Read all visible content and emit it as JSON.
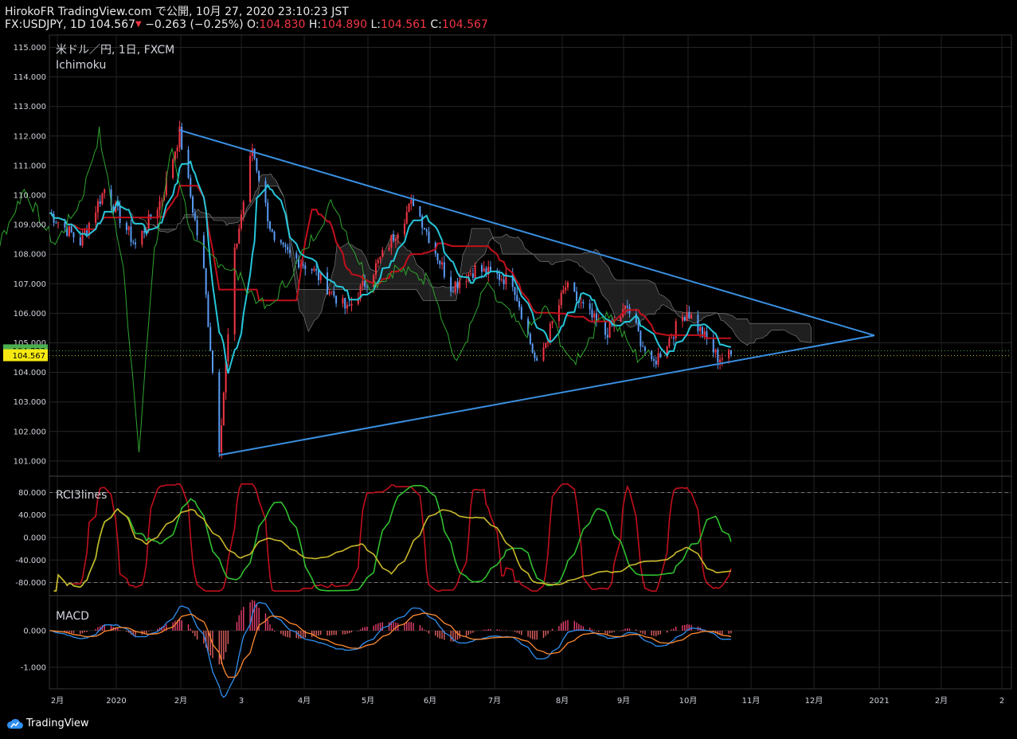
{
  "header": {
    "line1": "HirokoFR TradingView.com で公開, 10月 27, 2020 23:10:23 JST",
    "symbol": "FX:USDJPY, 1D 104.567",
    "change": "−0.263 (−0.25%)",
    "o_label": "O:",
    "o_value": "104.830",
    "h_label": "H:",
    "h_value": "104.890",
    "l_label": "L:",
    "l_value": "104.561",
    "c_label": "C:",
    "c_value": "104.567"
  },
  "main_pane": {
    "title": "米ドル／円, 1日, FXCM",
    "indicator": "Ichimoku"
  },
  "rci_pane": {
    "title": "RCI3lines"
  },
  "macd_pane": {
    "title": "MACD"
  },
  "footer": {
    "brand": "TradingView"
  },
  "colors": {
    "up": "#f23645",
    "down": "#5b9cf6",
    "tenkan": "#26c6da",
    "kijun": "#c0101c",
    "chikou": "#2fa52f",
    "kumo": "#444444",
    "trend": "#3a8fe0",
    "rci_short": "#c0101c",
    "rci_mid": "#2fbf2f",
    "rci_long": "#c9b82a",
    "macd": "#2f8ff0",
    "signal": "#ff8a30",
    "hist_up": "#e83f6f"
  },
  "chart_data": {
    "type": "candlestick",
    "price_axis": {
      "ticks": [
        "115.000",
        "114.000",
        "113.000",
        "112.000",
        "111.000",
        "110.000",
        "109.000",
        "108.000",
        "107.000",
        "106.000",
        "105.000",
        "104.000",
        "103.000",
        "102.000",
        "101.000"
      ]
    },
    "last_price_labels": [
      "104.733",
      "104.567"
    ],
    "time_axis": [
      "2月",
      "2020",
      "2月",
      "3",
      "4月",
      "5月",
      "6月",
      "7月",
      "8月",
      "9月",
      "10月",
      "11月",
      "12月",
      "2021",
      "2月",
      "2"
    ],
    "rci_axis": {
      "ticks": [
        "80.000",
        "40.000",
        "0.000",
        "-40.000",
        "-80.000"
      ],
      "levels": [
        80,
        -80
      ]
    },
    "macd_axis": {
      "ticks": [
        "0.000",
        "-1.000"
      ]
    },
    "triangle": {
      "upper": [
        [
          "2020-02-20",
          112.2
        ],
        [
          "2020-12-31",
          105.25
        ]
      ],
      "lower": [
        [
          "2020-03-09",
          101.2
        ],
        [
          "2020-12-31",
          105.25
        ]
      ]
    },
    "price_path": [
      [
        "2019-12-23",
        109.4
      ],
      [
        "2020-01-06",
        108.4
      ],
      [
        "2020-01-17",
        110.2
      ],
      [
        "2020-01-31",
        108.3
      ],
      [
        "2020-02-12",
        109.9
      ],
      [
        "2020-02-20",
        112.1
      ],
      [
        "2020-03-02",
        107.4
      ],
      [
        "2020-03-09",
        101.5
      ],
      [
        "2020-03-16",
        108.0
      ],
      [
        "2020-03-24",
        111.6
      ],
      [
        "2020-04-03",
        108.3
      ],
      [
        "2020-04-20",
        107.5
      ],
      [
        "2020-05-06",
        106.1
      ],
      [
        "2020-05-20",
        107.7
      ],
      [
        "2020-06-05",
        109.8
      ],
      [
        "2020-06-22",
        106.9
      ],
      [
        "2020-07-03",
        107.5
      ],
      [
        "2020-07-20",
        107.1
      ],
      [
        "2020-07-31",
        104.2
      ],
      [
        "2020-08-13",
        106.9
      ],
      [
        "2020-08-31",
        105.3
      ],
      [
        "2020-09-10",
        106.2
      ],
      [
        "2020-09-21",
        104.2
      ],
      [
        "2020-10-07",
        106.1
      ],
      [
        "2020-10-21",
        104.5
      ],
      [
        "2020-10-27",
        104.57
      ]
    ]
  }
}
